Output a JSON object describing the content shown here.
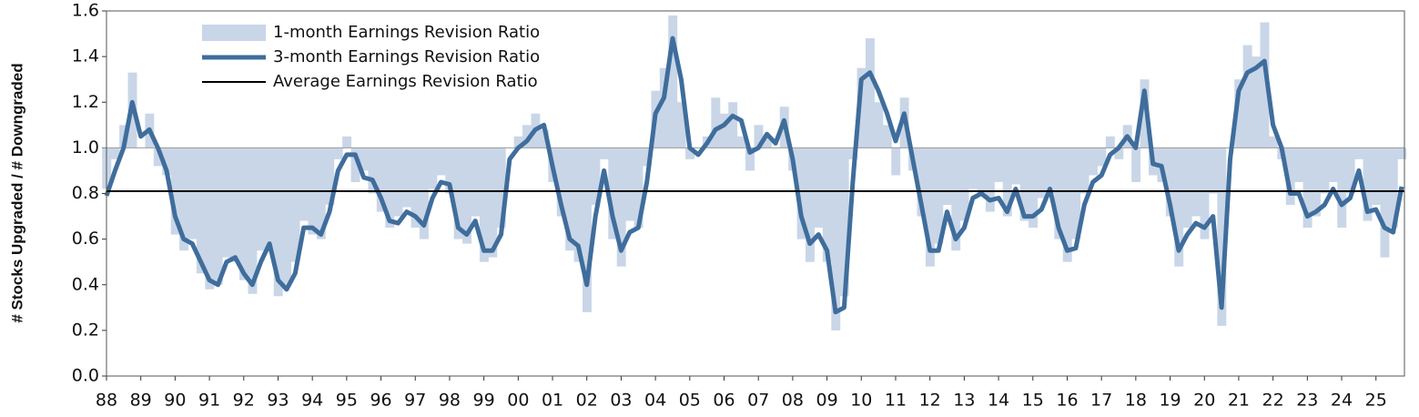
{
  "chart_data": {
    "type": "line",
    "ylabel": "# Stocks Upgraded / # Downgraded",
    "x": [
      1988,
      1988.25,
      1988.5,
      1988.75,
      1989,
      1989.25,
      1989.5,
      1989.75,
      1990,
      1990.25,
      1990.5,
      1990.75,
      1991,
      1991.25,
      1991.5,
      1991.75,
      1992,
      1992.25,
      1992.5,
      1992.75,
      1993,
      1993.25,
      1993.5,
      1993.75,
      1994,
      1994.25,
      1994.5,
      1994.75,
      1995,
      1995.25,
      1995.5,
      1995.75,
      1996,
      1996.25,
      1996.5,
      1996.75,
      1997,
      1997.25,
      1997.5,
      1997.75,
      1998,
      1998.25,
      1998.5,
      1998.75,
      1999,
      1999.25,
      1999.5,
      1999.75,
      2000,
      2000.25,
      2000.5,
      2000.75,
      2001,
      2001.25,
      2001.5,
      2001.75,
      2002,
      2002.25,
      2002.5,
      2002.75,
      2003,
      2003.25,
      2003.5,
      2003.75,
      2004,
      2004.25,
      2004.5,
      2004.75,
      2005,
      2005.25,
      2005.5,
      2005.75,
      2006,
      2006.25,
      2006.5,
      2006.75,
      2007,
      2007.25,
      2007.5,
      2007.75,
      2008,
      2008.25,
      2008.5,
      2008.75,
      2009,
      2009.25,
      2009.5,
      2009.75,
      2010,
      2010.25,
      2010.5,
      2010.75,
      2011,
      2011.25,
      2011.5,
      2011.75,
      2012,
      2012.25,
      2012.5,
      2012.75,
      2013,
      2013.25,
      2013.5,
      2013.75,
      2014,
      2014.25,
      2014.5,
      2014.75,
      2015,
      2015.25,
      2015.5,
      2015.75,
      2016,
      2016.25,
      2016.5,
      2016.75,
      2017,
      2017.25,
      2017.5,
      2017.75,
      2018,
      2018.25,
      2018.5,
      2018.75,
      2019,
      2019.25,
      2019.5,
      2019.75,
      2020,
      2020.25,
      2020.5,
      2020.75,
      2021,
      2021.25,
      2021.5,
      2021.75,
      2022,
      2022.25,
      2022.5,
      2022.75,
      2023,
      2023.25,
      2023.5,
      2023.75,
      2024,
      2024.25,
      2024.5,
      2024.75,
      2025,
      2025.25,
      2025.5,
      2025.75
    ],
    "series": [
      {
        "name": "1-month Earnings Revision Ratio",
        "style": "bars",
        "base": 1,
        "color": "#c9d6e8",
        "values": [
          0.82,
          0.95,
          1.1,
          1.33,
          1.0,
          1.15,
          0.92,
          0.88,
          0.62,
          0.55,
          0.6,
          0.45,
          0.38,
          0.4,
          0.52,
          0.5,
          0.42,
          0.36,
          0.55,
          0.55,
          0.35,
          0.4,
          0.5,
          0.68,
          0.62,
          0.6,
          0.75,
          0.95,
          1.05,
          0.85,
          0.9,
          0.8,
          0.72,
          0.65,
          0.7,
          0.74,
          0.65,
          0.6,
          0.82,
          0.88,
          0.8,
          0.6,
          0.58,
          0.7,
          0.5,
          0.52,
          0.65,
          1.0,
          1.05,
          1.1,
          1.15,
          1.08,
          0.85,
          0.7,
          0.55,
          0.5,
          0.28,
          0.75,
          0.95,
          0.6,
          0.48,
          0.68,
          0.65,
          0.92,
          1.25,
          1.35,
          1.58,
          1.2,
          0.95,
          1.0,
          1.05,
          1.22,
          1.15,
          1.2,
          1.05,
          0.9,
          1.1,
          1.05,
          1.0,
          1.18,
          0.9,
          0.6,
          0.5,
          0.65,
          0.5,
          0.2,
          0.35,
          0.95,
          1.35,
          1.48,
          1.2,
          1.1,
          0.88,
          1.22,
          0.9,
          0.7,
          0.48,
          0.58,
          0.75,
          0.55,
          0.68,
          0.82,
          0.8,
          0.72,
          0.85,
          0.7,
          0.84,
          0.68,
          0.65,
          0.78,
          0.8,
          0.6,
          0.5,
          0.6,
          0.8,
          0.88,
          0.92,
          1.05,
          0.95,
          1.1,
          0.85,
          1.3,
          0.88,
          0.85,
          0.7,
          0.48,
          0.65,
          0.7,
          0.6,
          0.8,
          0.22,
          1.0,
          1.3,
          1.45,
          1.4,
          1.55,
          1.05,
          0.95,
          0.75,
          0.85,
          0.65,
          0.7,
          0.8,
          0.85,
          0.65,
          0.8,
          0.95,
          0.68,
          0.75,
          0.52,
          0.65,
          0.95
        ]
      },
      {
        "name": "3-month Earnings Revision Ratio",
        "style": "line",
        "color": "#3f6d9c",
        "values": [
          0.79,
          0.9,
          1.0,
          1.2,
          1.05,
          1.08,
          1.0,
          0.9,
          0.7,
          0.6,
          0.58,
          0.5,
          0.42,
          0.4,
          0.5,
          0.52,
          0.45,
          0.4,
          0.5,
          0.58,
          0.42,
          0.38,
          0.45,
          0.65,
          0.65,
          0.62,
          0.72,
          0.9,
          0.97,
          0.97,
          0.87,
          0.86,
          0.78,
          0.68,
          0.67,
          0.72,
          0.7,
          0.66,
          0.78,
          0.85,
          0.84,
          0.65,
          0.62,
          0.68,
          0.55,
          0.55,
          0.62,
          0.95,
          1.0,
          1.03,
          1.08,
          1.1,
          0.92,
          0.75,
          0.6,
          0.57,
          0.4,
          0.7,
          0.9,
          0.7,
          0.55,
          0.63,
          0.65,
          0.85,
          1.15,
          1.22,
          1.48,
          1.3,
          1.0,
          0.97,
          1.02,
          1.08,
          1.1,
          1.14,
          1.12,
          0.98,
          1.0,
          1.06,
          1.02,
          1.12,
          0.95,
          0.7,
          0.58,
          0.62,
          0.55,
          0.28,
          0.3,
          0.85,
          1.3,
          1.33,
          1.25,
          1.15,
          1.03,
          1.15,
          0.95,
          0.75,
          0.55,
          0.55,
          0.72,
          0.6,
          0.65,
          0.78,
          0.8,
          0.77,
          0.78,
          0.72,
          0.82,
          0.7,
          0.7,
          0.73,
          0.82,
          0.65,
          0.55,
          0.56,
          0.75,
          0.85,
          0.88,
          0.97,
          1.0,
          1.05,
          1.0,
          1.25,
          0.93,
          0.92,
          0.75,
          0.55,
          0.62,
          0.67,
          0.65,
          0.7,
          0.3,
          0.95,
          1.25,
          1.33,
          1.35,
          1.38,
          1.1,
          1.0,
          0.8,
          0.8,
          0.7,
          0.72,
          0.75,
          0.82,
          0.75,
          0.78,
          0.9,
          0.72,
          0.73,
          0.65,
          0.63,
          0.83
        ]
      },
      {
        "name": "Average Earnings Revision Ratio",
        "style": "hline",
        "color": "#000000",
        "value": 0.81
      }
    ],
    "xlim": [
      1988,
      2025.83
    ],
    "xticks": [
      {
        "value": 1988,
        "label": "88"
      },
      {
        "value": 1989,
        "label": "89"
      },
      {
        "value": 1990,
        "label": "90"
      },
      {
        "value": 1991,
        "label": "91"
      },
      {
        "value": 1992,
        "label": "92"
      },
      {
        "value": 1993,
        "label": "93"
      },
      {
        "value": 1994,
        "label": "94"
      },
      {
        "value": 1995,
        "label": "95"
      },
      {
        "value": 1996,
        "label": "96"
      },
      {
        "value": 1997,
        "label": "97"
      },
      {
        "value": 1998,
        "label": "98"
      },
      {
        "value": 1999,
        "label": "99"
      },
      {
        "value": 2000,
        "label": "00"
      },
      {
        "value": 2001,
        "label": "01"
      },
      {
        "value": 2002,
        "label": "02"
      },
      {
        "value": 2003,
        "label": "03"
      },
      {
        "value": 2004,
        "label": "04"
      },
      {
        "value": 2005,
        "label": "05"
      },
      {
        "value": 2006,
        "label": "06"
      },
      {
        "value": 2007,
        "label": "07"
      },
      {
        "value": 2008,
        "label": "08"
      },
      {
        "value": 2009,
        "label": "09"
      },
      {
        "value": 2010,
        "label": "10"
      },
      {
        "value": 2011,
        "label": "11"
      },
      {
        "value": 2012,
        "label": "12"
      },
      {
        "value": 2013,
        "label": "13"
      },
      {
        "value": 2014,
        "label": "14"
      },
      {
        "value": 2015,
        "label": "15"
      },
      {
        "value": 2016,
        "label": "16"
      },
      {
        "value": 2017,
        "label": "17"
      },
      {
        "value": 2018,
        "label": "18"
      },
      {
        "value": 2019,
        "label": "19"
      },
      {
        "value": 2020,
        "label": "20"
      },
      {
        "value": 2021,
        "label": "21"
      },
      {
        "value": 2022,
        "label": "22"
      },
      {
        "value": 2023,
        "label": "23"
      },
      {
        "value": 2024,
        "label": "24"
      },
      {
        "value": 2025,
        "label": "25"
      }
    ],
    "ylim": [
      0,
      1.6
    ],
    "yticks": [
      {
        "value": 0,
        "label": "0.0"
      },
      0.2,
      0.4,
      0.6,
      0.8,
      {
        "value": 1,
        "label": "1.0"
      },
      1.2,
      1.4,
      1.6
    ],
    "legend": "top-left"
  }
}
